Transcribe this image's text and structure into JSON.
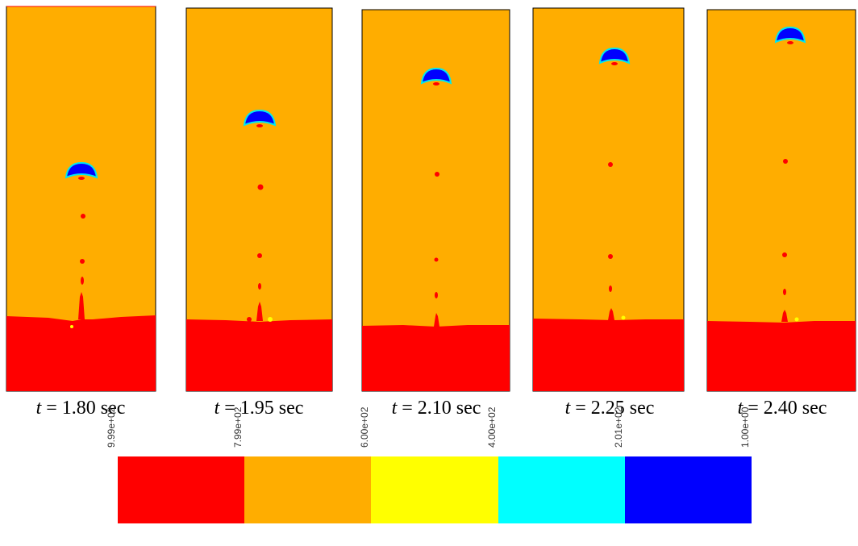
{
  "panels": [
    {
      "var": "t",
      "text": " = 1.80 sec"
    },
    {
      "var": "t",
      "text": " = 1.95 sec"
    },
    {
      "var": "t",
      "text": " = 2.10 sec"
    },
    {
      "var": "t",
      "text": " = 2.25 sec"
    },
    {
      "var": "t",
      "text": " = 2.40 sec"
    }
  ],
  "colorbar": {
    "labels": [
      "9.99e+02",
      "7.99e+02",
      "6.00e+02",
      "4.00e+02",
      "2.01e+02",
      "1.00e+00"
    ]
  }
}
